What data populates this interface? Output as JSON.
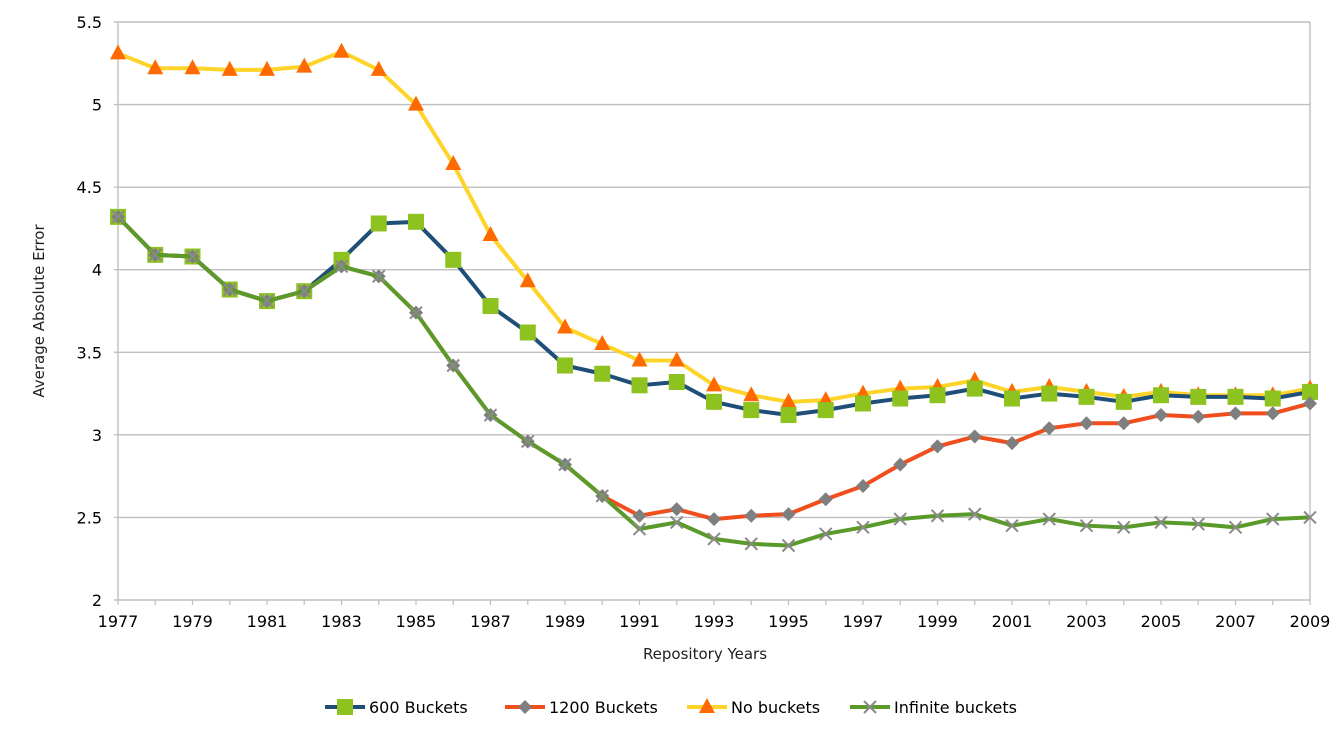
{
  "chart_data": {
    "type": "line",
    "title": "",
    "xlabel": "Repository Years",
    "ylabel": "Average Absolute Error",
    "ylim": [
      2,
      5.5
    ],
    "xlim": [
      1977,
      2009
    ],
    "yticks": [
      "2",
      "2.5",
      "3",
      "3.5",
      "4",
      "4.5",
      "5",
      "5.5"
    ],
    "xticks": [
      "1977",
      "1979",
      "1981",
      "1983",
      "1985",
      "1987",
      "1989",
      "1991",
      "1993",
      "1995",
      "1997",
      "1999",
      "2001",
      "2003",
      "2005",
      "2007",
      "2009"
    ],
    "grid": "horizontal",
    "legend_position": "bottom",
    "x": [
      1977,
      1978,
      1979,
      1980,
      1981,
      1982,
      1983,
      1984,
      1985,
      1986,
      1987,
      1988,
      1989,
      1990,
      1991,
      1992,
      1993,
      1994,
      1995,
      1996,
      1997,
      1998,
      1999,
      2000,
      2001,
      2002,
      2003,
      2004,
      2005,
      2006,
      2007,
      2008,
      2009
    ],
    "series": [
      {
        "name": "600 Buckets",
        "color": "#1f4e79",
        "marker_color": "#8dc21f",
        "marker": "square",
        "values": [
          4.32,
          4.09,
          4.08,
          3.88,
          3.81,
          3.87,
          4.06,
          4.28,
          4.29,
          4.06,
          3.78,
          3.62,
          3.42,
          3.37,
          3.3,
          3.32,
          3.2,
          3.15,
          3.12,
          3.15,
          3.19,
          3.22,
          3.24,
          3.28,
          3.22,
          3.25,
          3.23,
          3.2,
          3.24,
          3.23,
          3.23,
          3.22,
          3.26
        ]
      },
      {
        "name": "1200 Buckets",
        "color": "#f04e1c",
        "marker_color": "#7f7f7f",
        "marker": "diamond",
        "values": [
          4.32,
          4.09,
          4.08,
          3.88,
          3.81,
          3.87,
          4.02,
          3.96,
          3.74,
          3.42,
          3.12,
          2.96,
          2.82,
          2.63,
          2.51,
          2.55,
          2.49,
          2.51,
          2.52,
          2.61,
          2.69,
          2.82,
          2.93,
          2.99,
          2.95,
          3.04,
          3.07,
          3.07,
          3.12,
          3.11,
          3.13,
          3.13,
          3.19
        ]
      },
      {
        "name": "No buckets",
        "color": "#ffd42a",
        "marker_color": "#ff6a00",
        "marker": "triangle",
        "values": [
          5.31,
          5.22,
          5.22,
          5.21,
          5.21,
          5.23,
          5.32,
          5.21,
          5.0,
          4.64,
          4.21,
          3.93,
          3.65,
          3.55,
          3.45,
          3.45,
          3.3,
          3.24,
          3.2,
          3.21,
          3.25,
          3.28,
          3.29,
          3.33,
          3.26,
          3.29,
          3.26,
          3.23,
          3.26,
          3.24,
          3.24,
          3.24,
          3.28
        ]
      },
      {
        "name": "Infinite buckets",
        "color": "#5a9a2a",
        "marker_color": "#8a8a8a",
        "marker": "x",
        "values": [
          4.32,
          4.09,
          4.08,
          3.88,
          3.81,
          3.87,
          4.02,
          3.96,
          3.74,
          3.42,
          3.12,
          2.96,
          2.82,
          2.63,
          2.43,
          2.47,
          2.37,
          2.34,
          2.33,
          2.4,
          2.44,
          2.49,
          2.51,
          2.52,
          2.45,
          2.49,
          2.45,
          2.44,
          2.47,
          2.46,
          2.44,
          2.49,
          2.5
        ]
      }
    ]
  }
}
